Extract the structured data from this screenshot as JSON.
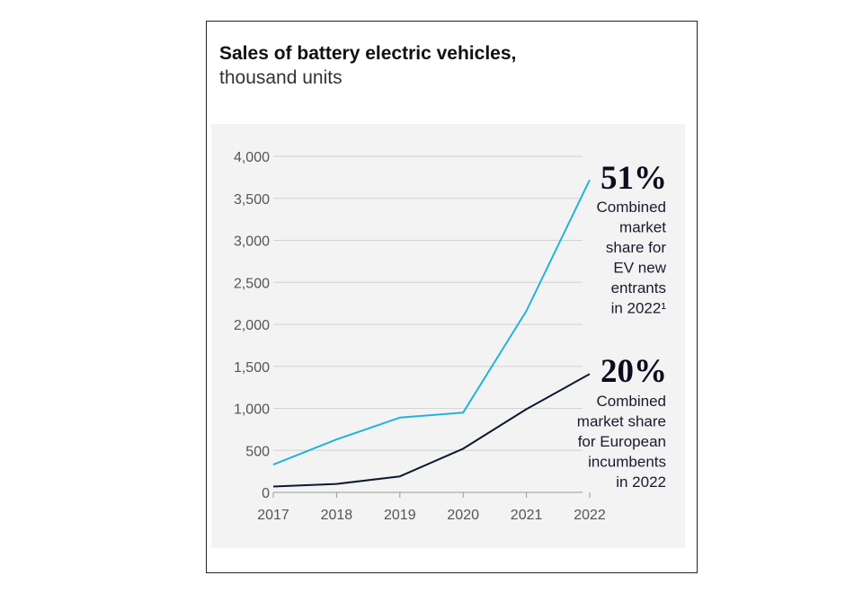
{
  "chart_data": {
    "type": "line",
    "title_bold": "Sales of battery electric vehicles,",
    "title_light": " thousand units",
    "x": [
      "2017",
      "2018",
      "2019",
      "2020",
      "2021",
      "2022"
    ],
    "ylim": [
      0,
      4000
    ],
    "yticks": [
      "0",
      "500",
      "1,000",
      "1,500",
      "2,000",
      "2,500",
      "3,000",
      "3,500",
      "4,000"
    ],
    "grid": true,
    "series": [
      {
        "values": [
          330,
          630,
          890,
          950,
          2160,
          3720
        ],
        "color": "#22b4d6"
      },
      {
        "values": [
          70,
          100,
          190,
          520,
          990,
          1410
        ],
        "color": "#0c1a2e"
      }
    ],
    "annotations": [
      {
        "big": "51%",
        "lines": [
          "Combined",
          "market",
          "share for",
          "EV new",
          "entrants",
          "in 2022¹"
        ]
      },
      {
        "big": "20%",
        "lines": [
          "Combined",
          "market share",
          "for European",
          "incumbents",
          "in 2022"
        ]
      }
    ]
  }
}
